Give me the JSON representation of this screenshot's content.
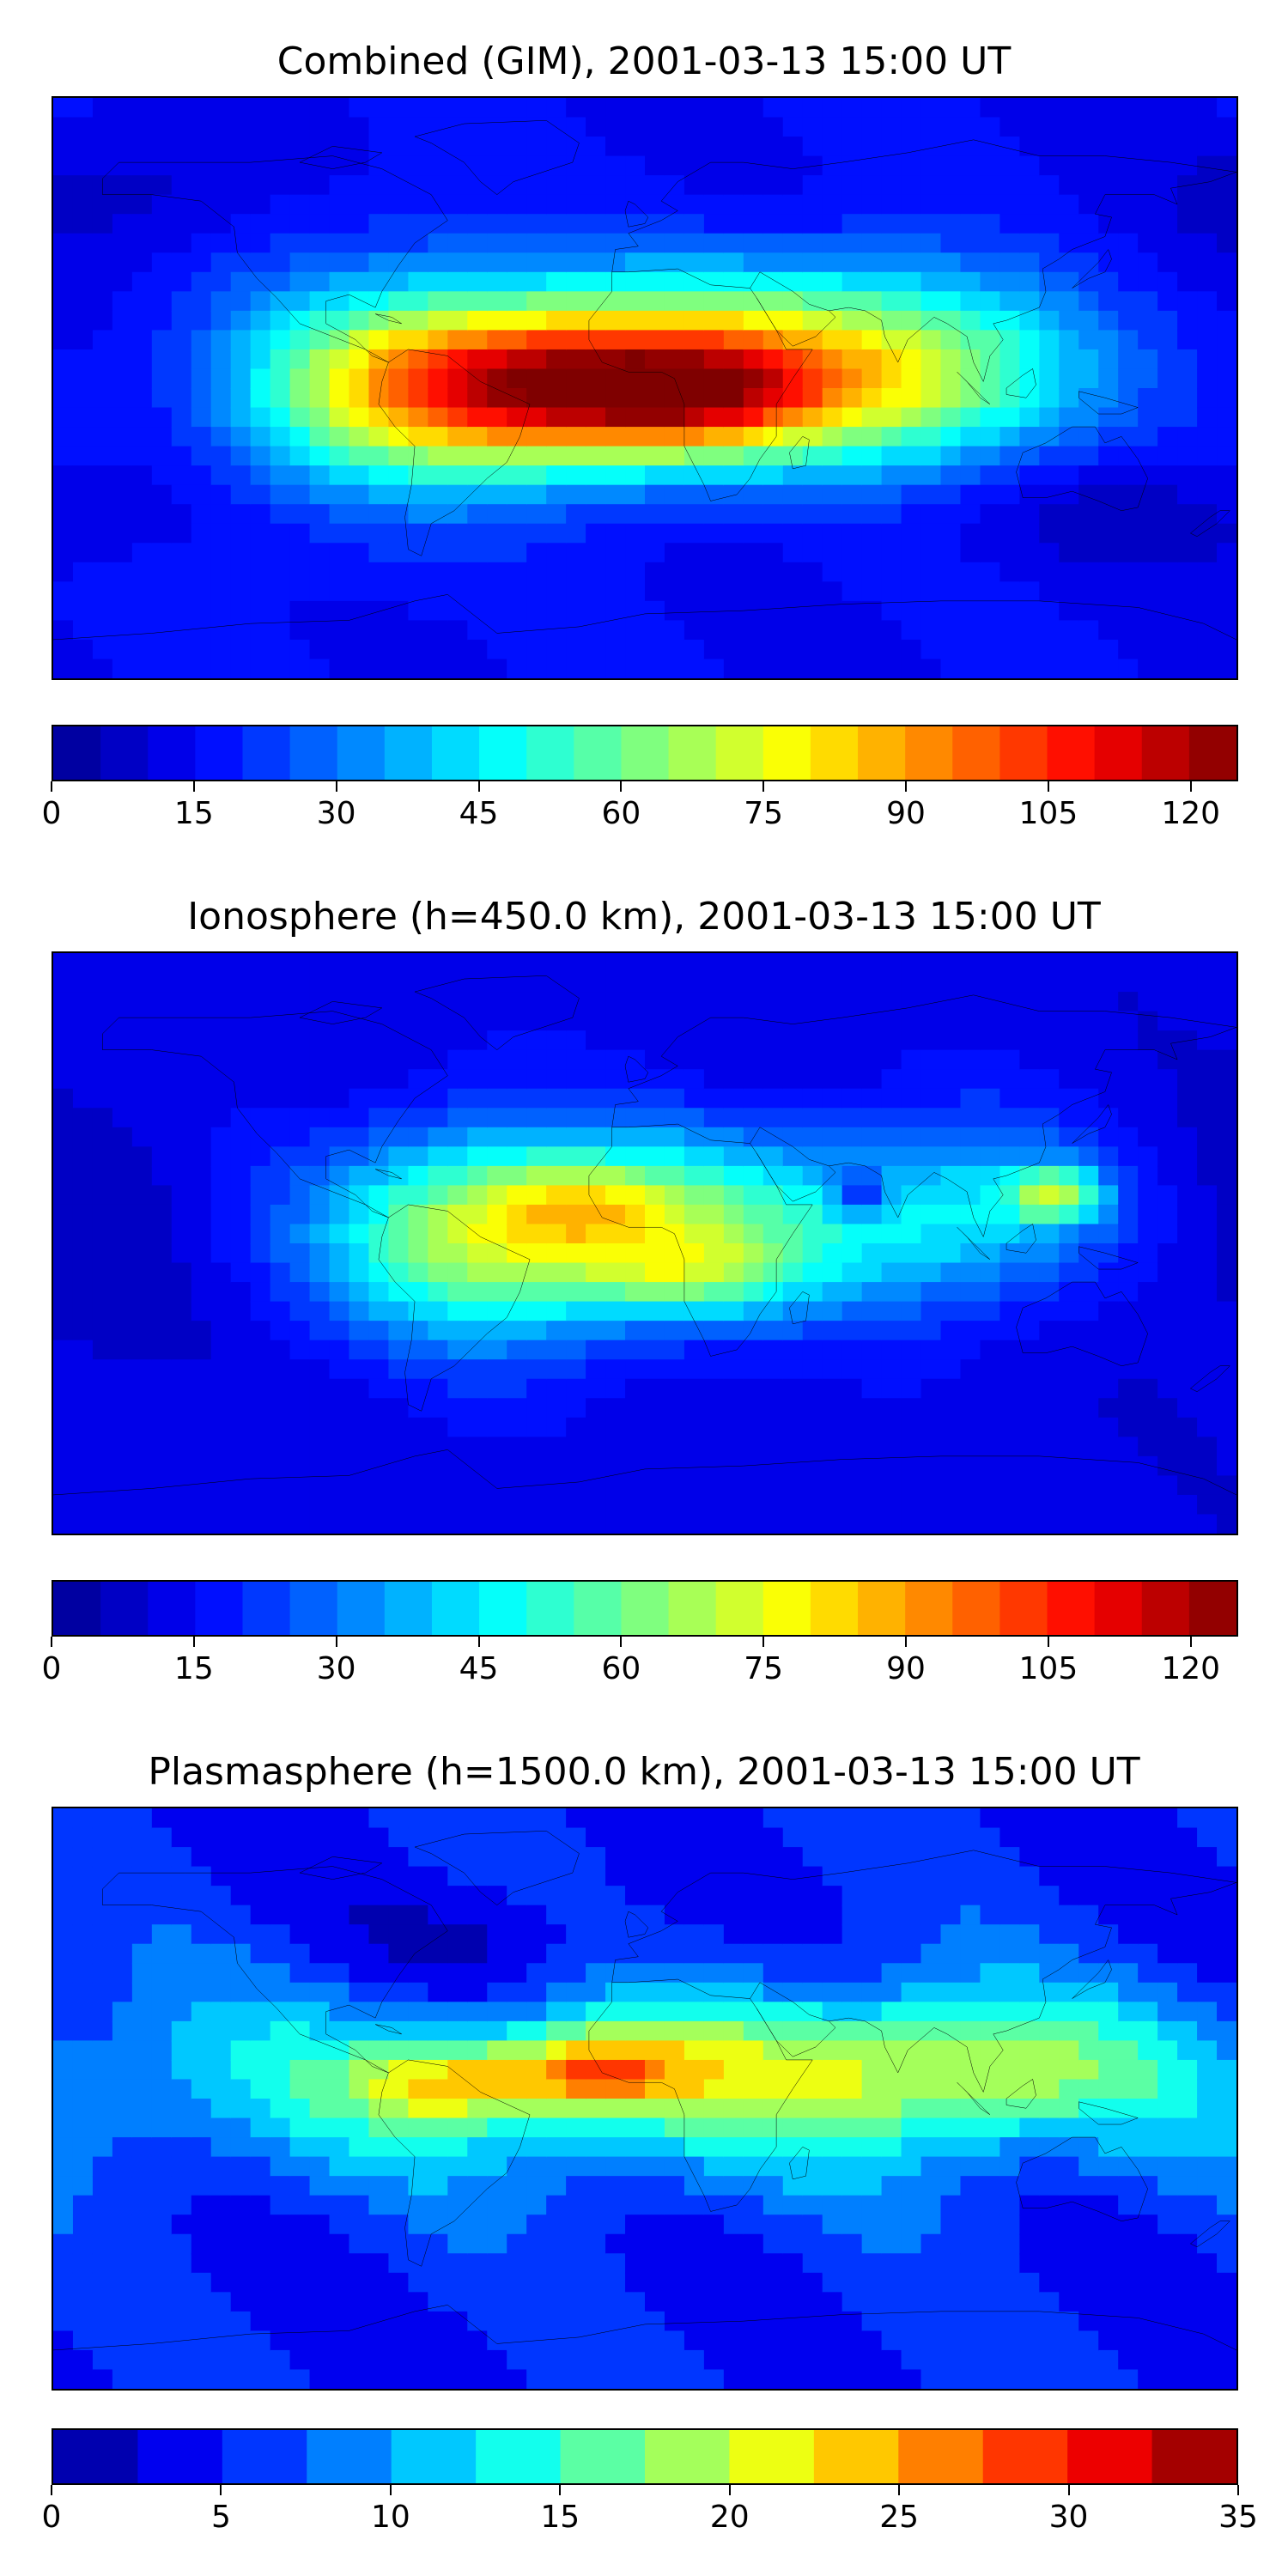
{
  "panels": [
    {
      "title": "Combined (GIM), 2001-03-13 15:00 UT",
      "colorbar": {
        "min": 0,
        "max": 125,
        "step": 5,
        "ticks": [
          0,
          15,
          30,
          45,
          60,
          75,
          90,
          105,
          120
        ],
        "tick_labels": [
          "0",
          "15",
          "30",
          "45",
          "60",
          "75",
          "90",
          "105",
          "120"
        ]
      },
      "field": {
        "background": 15,
        "blobs": [
          {
            "lon": -5,
            "lat": 0,
            "amp": 95,
            "slon": 55,
            "slat": 17
          },
          {
            "lon": 15,
            "lat": -3,
            "amp": 20,
            "slon": 25,
            "slat": 10
          },
          {
            "lon": -50,
            "lat": 5,
            "amp": 30,
            "slon": 35,
            "slat": 22
          },
          {
            "lon": 90,
            "lat": 5,
            "amp": 35,
            "slon": 35,
            "slat": 20
          },
          {
            "lon": 40,
            "lat": 25,
            "amp": 20,
            "slon": 40,
            "slat": 15
          },
          {
            "lon": -90,
            "lat": 0,
            "amp": 20,
            "slon": 30,
            "slat": 30
          },
          {
            "lon": 150,
            "lat": -40,
            "amp": -8,
            "slon": 40,
            "slat": 12
          },
          {
            "lon": -160,
            "lat": 60,
            "amp": -8,
            "slon": 30,
            "slat": 15
          }
        ]
      }
    },
    {
      "title": "Ionosphere  (h=450.0 km), 2001-03-13 15:00 UT",
      "colorbar": {
        "min": 0,
        "max": 125,
        "step": 5,
        "ticks": [
          0,
          15,
          30,
          45,
          60,
          75,
          90,
          105,
          120
        ],
        "tick_labels": [
          "0",
          "15",
          "30",
          "45",
          "60",
          "75",
          "90",
          "105",
          "120"
        ]
      },
      "field": {
        "background": 12,
        "blobs": [
          {
            "lon": -5,
            "lat": 5,
            "amp": 55,
            "slon": 55,
            "slat": 20
          },
          {
            "lon": 15,
            "lat": -10,
            "amp": 20,
            "slon": 22,
            "slat": 8
          },
          {
            "lon": -20,
            "lat": 12,
            "amp": 15,
            "slon": 18,
            "slat": 8
          },
          {
            "lon": -55,
            "lat": 0,
            "amp": 25,
            "slon": 30,
            "slat": 25
          },
          {
            "lon": 125,
            "lat": 15,
            "amp": 40,
            "slon": 10,
            "slat": 6
          },
          {
            "lon": 100,
            "lat": 10,
            "amp": 25,
            "slon": 30,
            "slat": 20
          },
          {
            "lon": 65,
            "lat": 15,
            "amp": -25,
            "slon": 6,
            "slat": 5
          },
          {
            "lon": -170,
            "lat": 0,
            "amp": -6,
            "slon": 25,
            "slat": 30
          }
        ]
      }
    },
    {
      "title": "Plasmasphere (h=1500.0 km), 2001-03-13 15:00 UT",
      "colorbar": {
        "min": 0,
        "max": 35,
        "step": 2.5,
        "ticks": [
          0,
          5,
          10,
          15,
          20,
          25,
          30,
          35
        ],
        "tick_labels": [
          "0",
          "5",
          "10",
          "15",
          "20",
          "25",
          "30",
          "35"
        ]
      },
      "field": {
        "background": 5,
        "blobs": [
          {
            "lon": 0,
            "lat": 5,
            "amp": 10,
            "slon": 140,
            "slat": 22
          },
          {
            "lon": -60,
            "lat": 5,
            "amp": 10,
            "slon": 20,
            "slat": 9
          },
          {
            "lon": -15,
            "lat": 8,
            "amp": 12,
            "slon": 18,
            "slat": 8
          },
          {
            "lon": 30,
            "lat": 10,
            "amp": 4,
            "slon": 40,
            "slat": 15
          },
          {
            "lon": 90,
            "lat": 10,
            "amp": 6,
            "slon": 30,
            "slat": 15
          },
          {
            "lon": 130,
            "lat": 10,
            "amp": 3,
            "slon": 30,
            "slat": 15
          },
          {
            "lon": -45,
            "lat": 45,
            "amp": -4,
            "slon": 30,
            "slat": 15
          }
        ]
      }
    }
  ],
  "colors": {
    "jet": [
      "#00008f",
      "#0000ff",
      "#007fff",
      "#00ffff",
      "#7fff7f",
      "#ffff00",
      "#ff7f00",
      "#ff0000",
      "#7f0000"
    ],
    "coastline": "#000000"
  }
}
